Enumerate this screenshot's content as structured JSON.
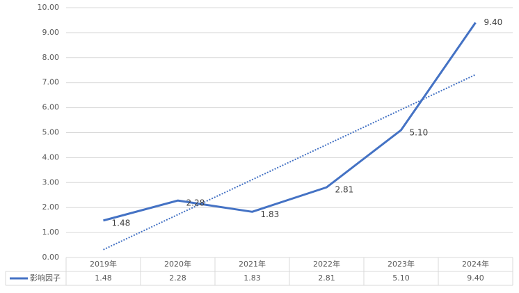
{
  "chart_data": {
    "type": "line",
    "categories": [
      "2019年",
      "2020年",
      "2021年",
      "2022年",
      "2023年",
      "2024年"
    ],
    "series": [
      {
        "name": "影响因子",
        "color": "#4472c4",
        "values": [
          1.48,
          2.28,
          1.83,
          2.81,
          5.1,
          9.4
        ],
        "value_labels": [
          "1.48",
          "2.28",
          "1.83",
          "2.81",
          "5.10",
          "9.40"
        ]
      }
    ],
    "trendline": "linear",
    "ylim": [
      0,
      10
    ],
    "yticks": [
      {
        "value": 0,
        "label": "0.00"
      },
      {
        "value": 1,
        "label": "1.00"
      },
      {
        "value": 2,
        "label": "2.00"
      },
      {
        "value": 3,
        "label": "3.00"
      },
      {
        "value": 4,
        "label": "4.00"
      },
      {
        "value": 5,
        "label": "5.00"
      },
      {
        "value": 6,
        "label": "6.00"
      },
      {
        "value": 7,
        "label": "7.00"
      },
      {
        "value": 8,
        "label": "8.00"
      },
      {
        "value": 9,
        "label": "9.00"
      },
      {
        "value": 10,
        "label": "10.00"
      }
    ],
    "grid": true,
    "data_table": true
  }
}
